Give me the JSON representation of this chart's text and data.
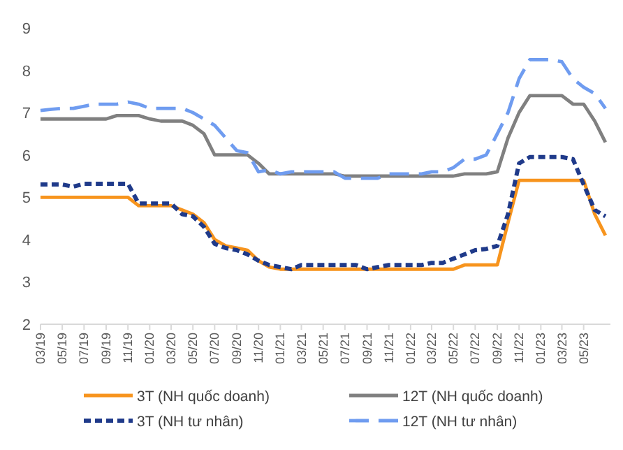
{
  "chart_data": {
    "type": "line",
    "x": [
      "2019-03",
      "2019-04",
      "2019-05",
      "2019-06",
      "2019-07",
      "2019-08",
      "2019-09",
      "2019-10",
      "2019-11",
      "2019-12",
      "2020-01",
      "2020-02",
      "2020-03",
      "2020-04",
      "2020-05",
      "2020-06",
      "2020-07",
      "2020-08",
      "2020-09",
      "2020-10",
      "2020-11",
      "2020-12",
      "2021-01",
      "2021-02",
      "2021-03",
      "2021-04",
      "2021-05",
      "2021-06",
      "2021-07",
      "2021-08",
      "2021-09",
      "2021-10",
      "2021-11",
      "2021-12",
      "2022-01",
      "2022-02",
      "2022-03",
      "2022-04",
      "2022-05",
      "2022-06",
      "2022-07",
      "2022-08",
      "2022-09",
      "2022-10",
      "2022-11",
      "2022-12",
      "2023-01",
      "2023-02",
      "2023-03",
      "2023-04",
      "2023-05",
      "2023-06",
      "2023-07"
    ],
    "series": [
      {
        "name": "3T (NH quốc doanh)",
        "color": "#f7941d",
        "line_style": "solid",
        "values": [
          5.0,
          5.0,
          5.0,
          5.0,
          5.0,
          5.0,
          5.0,
          5.0,
          5.0,
          4.8,
          4.8,
          4.8,
          4.8,
          4.7,
          4.6,
          4.4,
          4.0,
          3.85,
          3.8,
          3.75,
          3.5,
          3.35,
          3.3,
          3.3,
          3.3,
          3.3,
          3.3,
          3.3,
          3.3,
          3.3,
          3.3,
          3.3,
          3.3,
          3.3,
          3.3,
          3.3,
          3.3,
          3.3,
          3.3,
          3.4,
          3.4,
          3.4,
          3.4,
          4.4,
          5.4,
          5.4,
          5.4,
          5.4,
          5.4,
          5.4,
          5.4,
          4.6,
          4.1
        ]
      },
      {
        "name": "12T (NH quốc doanh)",
        "color": "#808080",
        "line_style": "solid",
        "values": [
          6.85,
          6.85,
          6.85,
          6.85,
          6.85,
          6.85,
          6.85,
          6.93,
          6.93,
          6.93,
          6.85,
          6.8,
          6.8,
          6.8,
          6.7,
          6.5,
          6.0,
          6.0,
          6.0,
          6.0,
          5.8,
          5.55,
          5.55,
          5.55,
          5.55,
          5.55,
          5.55,
          5.55,
          5.5,
          5.5,
          5.5,
          5.5,
          5.5,
          5.5,
          5.5,
          5.5,
          5.5,
          5.5,
          5.5,
          5.55,
          5.55,
          5.55,
          5.6,
          6.4,
          7.0,
          7.4,
          7.4,
          7.4,
          7.4,
          7.2,
          7.2,
          6.8,
          6.3
        ]
      },
      {
        "name": "3T (NH tư nhân)",
        "color": "#1f3a8a",
        "line_style": "dashed",
        "values": [
          5.3,
          5.3,
          5.3,
          5.25,
          5.32,
          5.32,
          5.32,
          5.32,
          5.32,
          4.85,
          4.85,
          4.85,
          4.85,
          4.6,
          4.55,
          4.3,
          3.9,
          3.8,
          3.75,
          3.65,
          3.5,
          3.4,
          3.35,
          3.3,
          3.4,
          3.4,
          3.4,
          3.4,
          3.4,
          3.4,
          3.3,
          3.35,
          3.4,
          3.4,
          3.4,
          3.4,
          3.45,
          3.45,
          3.55,
          3.65,
          3.75,
          3.78,
          3.85,
          4.6,
          5.8,
          5.95,
          5.95,
          5.95,
          5.95,
          5.9,
          5.3,
          4.7,
          4.55
        ]
      },
      {
        "name": "12T (NH tư nhân)",
        "color": "#6f9cf0",
        "line_style": "dashed",
        "values": [
          7.05,
          7.08,
          7.1,
          7.1,
          7.15,
          7.2,
          7.2,
          7.2,
          7.25,
          7.2,
          7.1,
          7.1,
          7.1,
          7.1,
          7.0,
          6.85,
          6.7,
          6.4,
          6.1,
          6.05,
          5.6,
          5.65,
          5.55,
          5.6,
          5.6,
          5.6,
          5.6,
          5.6,
          5.45,
          5.45,
          5.45,
          5.45,
          5.55,
          5.55,
          5.55,
          5.55,
          5.6,
          5.6,
          5.7,
          5.9,
          5.9,
          6.0,
          6.5,
          7.0,
          7.8,
          8.25,
          8.25,
          8.25,
          8.2,
          7.8,
          7.6,
          7.45,
          7.1
        ]
      }
    ],
    "xlim": [
      "2019-03",
      "2023-07-15"
    ],
    "xticks": [
      {
        "value": "2019-03",
        "label": "03/19"
      },
      {
        "value": "2019-05",
        "label": "05/19"
      },
      {
        "value": "2019-07",
        "label": "07/19"
      },
      {
        "value": "2019-09",
        "label": "09/19"
      },
      {
        "value": "2019-11",
        "label": "11/19"
      },
      {
        "value": "2020-01",
        "label": "01/20"
      },
      {
        "value": "2020-03",
        "label": "03/20"
      },
      {
        "value": "2020-05",
        "label": "05/20"
      },
      {
        "value": "2020-07",
        "label": "07/20"
      },
      {
        "value": "2020-09",
        "label": "09/20"
      },
      {
        "value": "2020-11",
        "label": "11/20"
      },
      {
        "value": "2021-01",
        "label": "01/21"
      },
      {
        "value": "2021-03",
        "label": "03/21"
      },
      {
        "value": "2021-05",
        "label": "05/21"
      },
      {
        "value": "2021-07",
        "label": "07/21"
      },
      {
        "value": "2021-09",
        "label": "09/21"
      },
      {
        "value": "2021-11",
        "label": "11/21"
      },
      {
        "value": "2022-01",
        "label": "01/22"
      },
      {
        "value": "2022-03",
        "label": "03/22"
      },
      {
        "value": "2022-05",
        "label": "05/22"
      },
      {
        "value": "2022-07",
        "label": "07/22"
      },
      {
        "value": "2022-09",
        "label": "09/22"
      },
      {
        "value": "2022-11",
        "label": "11/22"
      },
      {
        "value": "2023-01",
        "label": "01/23"
      },
      {
        "value": "2023-03",
        "label": "03/23"
      },
      {
        "value": "2023-05",
        "label": "05/23"
      }
    ],
    "ylim": [
      2,
      9
    ],
    "yticks": [
      2,
      3,
      4,
      5,
      6,
      7,
      8,
      9
    ],
    "grid": false,
    "legend": "bottom",
    "marker": "none"
  }
}
